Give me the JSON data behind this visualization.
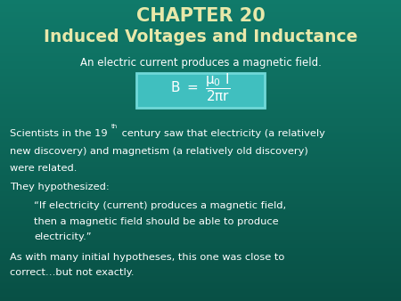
{
  "title_line1": "CHAPTER 20",
  "title_line2": "Induced Voltages and Inductance",
  "bg_color_top": "#1A7A6E",
  "bg_color_bottom": "#0A5248",
  "title_color": "#E8E8AA",
  "body_text_color": "#FFFFFF",
  "formula_box_color": "#3EBFBF",
  "formula_box_edge": "#AADDDD",
  "subtitle": "An electric current produces a magnetic field.",
  "hypothesized": "They hypothesized:",
  "quote_line1": "“If electricity (current) produces a magnetic field,",
  "quote_line2": "then a magnetic field should be able to produce",
  "quote_line3": "electricity.”",
  "conclusion_line1": "As with many initial hypotheses, this one was close to",
  "conclusion_line2": "correct…but not exactly.",
  "figwidth": 4.5,
  "figheight": 3.38,
  "dpi": 100
}
